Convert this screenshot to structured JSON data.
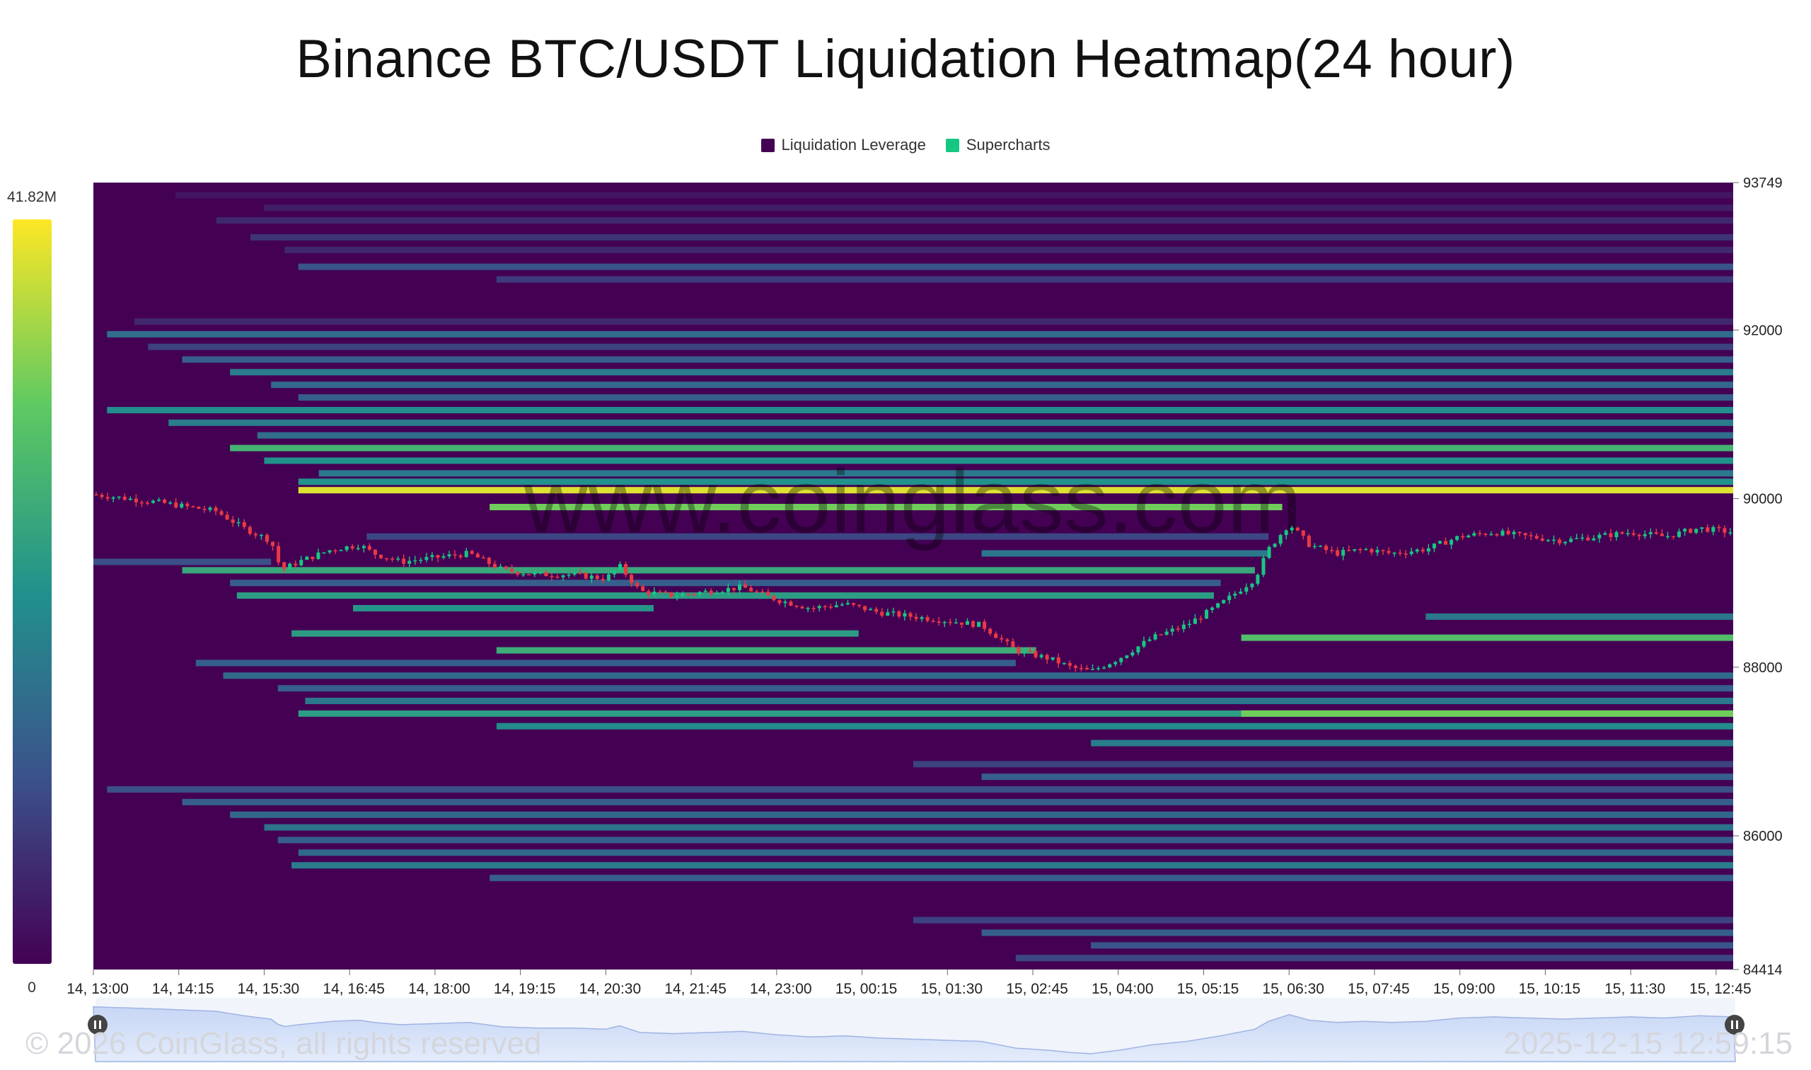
{
  "title": "Binance BTC/USDT Liquidation Heatmap(24 hour)",
  "legend": [
    {
      "label": "Liquidation Leverage",
      "color": "#440154"
    },
    {
      "label": "Supercharts",
      "color": "#16c784"
    }
  ],
  "watermark": "www.coinglass.com",
  "footer": {
    "copyright": "© 2026 CoinGlass, all rights reserved",
    "timestamp": "2025-12-15 12:59:15"
  },
  "colorbar": {
    "max_label": "41.82M",
    "min_label": "0"
  },
  "chart_data": {
    "type": "heatmap",
    "title": "Binance BTC/USDT Liquidation Heatmap(24 hour)",
    "y_range": [
      84414,
      93749
    ],
    "y_ticks": [
      {
        "value": 93749,
        "label": "93749"
      },
      {
        "value": 92000,
        "label": "92000"
      },
      {
        "value": 90000,
        "label": "90000"
      },
      {
        "value": 88000,
        "label": "88000"
      },
      {
        "value": 86000,
        "label": "86000"
      },
      {
        "value": 84414,
        "label": "84414"
      }
    ],
    "x_range": [
      0,
      24
    ],
    "x_ticks": [
      "14, 13:00",
      "14, 14:15",
      "14, 15:30",
      "14, 16:45",
      "14, 18:00",
      "14, 19:15",
      "14, 20:30",
      "14, 21:45",
      "14, 23:00",
      "15, 00:15",
      "15, 01:30",
      "15, 02:45",
      "15, 04:00",
      "15, 05:15",
      "15, 06:30",
      "15, 07:45",
      "15, 09:00",
      "15, 10:15",
      "15, 11:30",
      "15, 12:45"
    ],
    "color_scale": {
      "min": 0,
      "max": 41.82,
      "unit": "M",
      "colors": [
        "#440154",
        "#3b528b",
        "#21918c",
        "#5ec962",
        "#fde725"
      ]
    },
    "bands": [
      {
        "price": 93600,
        "start": 1.2,
        "end": 24,
        "value": 0.06
      },
      {
        "price": 93450,
        "start": 2.5,
        "end": 24,
        "value": 0.09
      },
      {
        "price": 93300,
        "start": 1.8,
        "end": 24,
        "value": 0.12
      },
      {
        "price": 93100,
        "start": 2.3,
        "end": 24,
        "value": 0.16
      },
      {
        "price": 92950,
        "start": 2.8,
        "end": 24,
        "value": 0.12
      },
      {
        "price": 92750,
        "start": 3.0,
        "end": 24,
        "value": 0.26
      },
      {
        "price": 92600,
        "start": 5.9,
        "end": 24,
        "value": 0.18
      },
      {
        "price": 92100,
        "start": 0.6,
        "end": 24,
        "value": 0.12
      },
      {
        "price": 91950,
        "start": 0.2,
        "end": 24,
        "value": 0.36
      },
      {
        "price": 91800,
        "start": 0.8,
        "end": 24,
        "value": 0.2
      },
      {
        "price": 91650,
        "start": 1.3,
        "end": 24,
        "value": 0.3
      },
      {
        "price": 91500,
        "start": 2.0,
        "end": 24,
        "value": 0.42
      },
      {
        "price": 91350,
        "start": 2.6,
        "end": 24,
        "value": 0.34
      },
      {
        "price": 91200,
        "start": 3.0,
        "end": 24,
        "value": 0.3
      },
      {
        "price": 91050,
        "start": 0.2,
        "end": 24,
        "value": 0.48
      },
      {
        "price": 90900,
        "start": 1.1,
        "end": 24,
        "value": 0.42
      },
      {
        "price": 90750,
        "start": 2.4,
        "end": 24,
        "value": 0.36
      },
      {
        "price": 90600,
        "start": 2.0,
        "end": 24,
        "value": 0.65
      },
      {
        "price": 90450,
        "start": 2.5,
        "end": 24,
        "value": 0.5
      },
      {
        "price": 90300,
        "start": 3.3,
        "end": 24,
        "value": 0.4
      },
      {
        "price": 90200,
        "start": 3.0,
        "end": 24,
        "value": 0.5
      },
      {
        "price": 90100,
        "start": 3.0,
        "end": 24,
        "value": 0.95
      },
      {
        "price": 89900,
        "start": 5.8,
        "end": 17.4,
        "value": 0.78
      },
      {
        "price": 89550,
        "start": 4.0,
        "end": 17.2,
        "value": 0.22
      },
      {
        "price": 89350,
        "start": 13.0,
        "end": 17.2,
        "value": 0.4
      },
      {
        "price": 89250,
        "start": 0.0,
        "end": 2.6,
        "value": 0.24
      },
      {
        "price": 89150,
        "start": 1.3,
        "end": 17.0,
        "value": 0.6
      },
      {
        "price": 89000,
        "start": 2.0,
        "end": 16.5,
        "value": 0.3
      },
      {
        "price": 88850,
        "start": 2.1,
        "end": 16.4,
        "value": 0.55
      },
      {
        "price": 88700,
        "start": 3.8,
        "end": 8.2,
        "value": 0.52
      },
      {
        "price": 88600,
        "start": 19.5,
        "end": 24,
        "value": 0.4
      },
      {
        "price": 88400,
        "start": 2.9,
        "end": 11.2,
        "value": 0.55
      },
      {
        "price": 88350,
        "start": 16.8,
        "end": 24,
        "value": 0.7
      },
      {
        "price": 88200,
        "start": 5.9,
        "end": 13.8,
        "value": 0.62
      },
      {
        "price": 88050,
        "start": 1.5,
        "end": 13.5,
        "value": 0.3
      },
      {
        "price": 87900,
        "start": 1.9,
        "end": 24,
        "value": 0.35
      },
      {
        "price": 87750,
        "start": 2.7,
        "end": 24,
        "value": 0.3
      },
      {
        "price": 87600,
        "start": 3.1,
        "end": 24,
        "value": 0.4
      },
      {
        "price": 87450,
        "start": 3.0,
        "end": 24,
        "value": 0.55
      },
      {
        "price": 87450,
        "start": 16.8,
        "end": 24,
        "value": 0.78
      },
      {
        "price": 87300,
        "start": 5.9,
        "end": 24,
        "value": 0.48
      },
      {
        "price": 87100,
        "start": 14.6,
        "end": 24,
        "value": 0.42
      },
      {
        "price": 86850,
        "start": 12.0,
        "end": 24,
        "value": 0.2
      },
      {
        "price": 86700,
        "start": 13.0,
        "end": 24,
        "value": 0.3
      },
      {
        "price": 86550,
        "start": 0.2,
        "end": 24,
        "value": 0.24
      },
      {
        "price": 86400,
        "start": 1.3,
        "end": 24,
        "value": 0.3
      },
      {
        "price": 86250,
        "start": 2.0,
        "end": 24,
        "value": 0.34
      },
      {
        "price": 86100,
        "start": 2.5,
        "end": 24,
        "value": 0.38
      },
      {
        "price": 85950,
        "start": 2.7,
        "end": 24,
        "value": 0.3
      },
      {
        "price": 85800,
        "start": 3.0,
        "end": 24,
        "value": 0.34
      },
      {
        "price": 85650,
        "start": 2.9,
        "end": 24,
        "value": 0.42
      },
      {
        "price": 85500,
        "start": 5.8,
        "end": 24,
        "value": 0.3
      },
      {
        "price": 85000,
        "start": 12.0,
        "end": 24,
        "value": 0.2
      },
      {
        "price": 84850,
        "start": 13.0,
        "end": 24,
        "value": 0.3
      },
      {
        "price": 84700,
        "start": 14.6,
        "end": 24,
        "value": 0.26
      },
      {
        "price": 84550,
        "start": 13.5,
        "end": 24,
        "value": 0.22
      }
    ],
    "price_path": [
      [
        0.0,
        90050
      ],
      [
        0.5,
        90000
      ],
      [
        1.0,
        89950
      ],
      [
        1.4,
        89900
      ],
      [
        1.8,
        89850
      ],
      [
        2.2,
        89650
      ],
      [
        2.6,
        89500
      ],
      [
        2.75,
        89150
      ],
      [
        3.0,
        89250
      ],
      [
        3.5,
        89400
      ],
      [
        3.9,
        89450
      ],
      [
        4.1,
        89350
      ],
      [
        4.5,
        89250
      ],
      [
        5.0,
        89300
      ],
      [
        5.5,
        89350
      ],
      [
        6.0,
        89150
      ],
      [
        6.5,
        89100
      ],
      [
        7.0,
        89100
      ],
      [
        7.5,
        89050
      ],
      [
        7.7,
        89200
      ],
      [
        8.0,
        88900
      ],
      [
        8.5,
        88850
      ],
      [
        9.0,
        88900
      ],
      [
        9.5,
        88950
      ],
      [
        10.0,
        88800
      ],
      [
        10.5,
        88700
      ],
      [
        11.0,
        88750
      ],
      [
        11.5,
        88650
      ],
      [
        12.0,
        88600
      ],
      [
        12.5,
        88550
      ],
      [
        13.0,
        88500
      ],
      [
        13.5,
        88200
      ],
      [
        14.0,
        88100
      ],
      [
        14.3,
        88000
      ],
      [
        14.6,
        87950
      ],
      [
        15.0,
        88100
      ],
      [
        15.5,
        88350
      ],
      [
        16.0,
        88500
      ],
      [
        16.5,
        88750
      ],
      [
        17.0,
        89050
      ],
      [
        17.2,
        89400
      ],
      [
        17.5,
        89700
      ],
      [
        17.8,
        89450
      ],
      [
        18.2,
        89350
      ],
      [
        18.6,
        89400
      ],
      [
        19.0,
        89350
      ],
      [
        19.5,
        89400
      ],
      [
        20.0,
        89550
      ],
      [
        20.5,
        89600
      ],
      [
        21.0,
        89550
      ],
      [
        21.5,
        89500
      ],
      [
        22.0,
        89550
      ],
      [
        22.5,
        89600
      ],
      [
        23.0,
        89550
      ],
      [
        23.5,
        89650
      ],
      [
        24.0,
        89600
      ]
    ]
  }
}
